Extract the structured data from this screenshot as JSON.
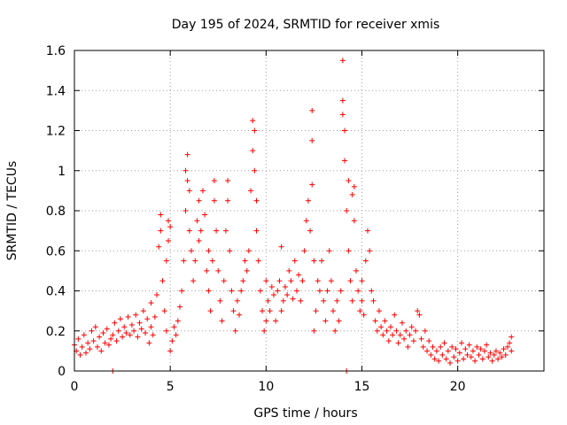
{
  "chart_data": {
    "type": "scatter",
    "title": "Day 195 of 2024, SRMTID for receiver xmis",
    "xlabel": "GPS time / hours",
    "ylabel": "SRMTID / TECUs",
    "xlim": [
      0,
      24.5
    ],
    "ylim": [
      0,
      1.6
    ],
    "xticks": [
      0,
      5,
      10,
      15,
      20
    ],
    "xtick_labels": [
      "0",
      "5",
      "10",
      "15",
      "20"
    ],
    "yticks": [
      0,
      0.2,
      0.4,
      0.6,
      0.8,
      1.0,
      1.2,
      1.4,
      1.6
    ],
    "ytick_labels": [
      "0",
      "0.2",
      "0.4",
      "0.6",
      "0.8",
      "1",
      "1.2",
      "1.4",
      "1.6"
    ],
    "grid": true,
    "marker": "+",
    "color": "#ff0000",
    "series": [
      {
        "name": "SRMTID",
        "points": [
          [
            0.0,
            0.13
          ],
          [
            0.1,
            0.1
          ],
          [
            0.2,
            0.16
          ],
          [
            0.3,
            0.08
          ],
          [
            0.4,
            0.12
          ],
          [
            0.5,
            0.18
          ],
          [
            0.6,
            0.09
          ],
          [
            0.7,
            0.14
          ],
          [
            0.8,
            0.11
          ],
          [
            0.9,
            0.2
          ],
          [
            1.0,
            0.15
          ],
          [
            1.1,
            0.22
          ],
          [
            1.2,
            0.12
          ],
          [
            1.3,
            0.17
          ],
          [
            1.4,
            0.1
          ],
          [
            1.5,
            0.19
          ],
          [
            1.6,
            0.14
          ],
          [
            1.7,
            0.21
          ],
          [
            1.8,
            0.13
          ],
          [
            1.9,
            0.16
          ],
          [
            2.0,
            0.0
          ],
          [
            2.0,
            0.18
          ],
          [
            2.1,
            0.24
          ],
          [
            2.2,
            0.15
          ],
          [
            2.3,
            0.2
          ],
          [
            2.4,
            0.26
          ],
          [
            2.5,
            0.17
          ],
          [
            2.6,
            0.22
          ],
          [
            2.7,
            0.19
          ],
          [
            2.8,
            0.27
          ],
          [
            2.9,
            0.18
          ],
          [
            3.0,
            0.23
          ],
          [
            3.1,
            0.2
          ],
          [
            3.2,
            0.28
          ],
          [
            3.3,
            0.17
          ],
          [
            3.4,
            0.24
          ],
          [
            3.5,
            0.21
          ],
          [
            3.6,
            0.3
          ],
          [
            3.7,
            0.19
          ],
          [
            3.8,
            0.26
          ],
          [
            3.9,
            0.14
          ],
          [
            4.0,
            0.22
          ],
          [
            4.0,
            0.34
          ],
          [
            4.1,
            0.18
          ],
          [
            4.2,
            0.27
          ],
          [
            4.3,
            0.38
          ],
          [
            4.4,
            0.62
          ],
          [
            4.5,
            0.7
          ],
          [
            4.5,
            0.78
          ],
          [
            4.6,
            0.45
          ],
          [
            4.7,
            0.3
          ],
          [
            4.8,
            0.2
          ],
          [
            4.8,
            0.55
          ],
          [
            4.9,
            0.65
          ],
          [
            4.9,
            0.75
          ],
          [
            5.0,
            0.72
          ],
          [
            5.0,
            0.1
          ],
          [
            5.1,
            0.15
          ],
          [
            5.2,
            0.22
          ],
          [
            5.3,
            0.18
          ],
          [
            5.4,
            0.25
          ],
          [
            5.5,
            0.32
          ],
          [
            5.6,
            0.4
          ],
          [
            5.7,
            0.55
          ],
          [
            5.8,
            0.8
          ],
          [
            5.8,
            1.0
          ],
          [
            5.9,
            1.08
          ],
          [
            5.9,
            0.95
          ],
          [
            6.0,
            0.9
          ],
          [
            6.0,
            0.7
          ],
          [
            6.1,
            0.6
          ],
          [
            6.2,
            0.45
          ],
          [
            6.3,
            0.55
          ],
          [
            6.4,
            0.75
          ],
          [
            6.5,
            0.85
          ],
          [
            6.5,
            0.65
          ],
          [
            6.6,
            0.7
          ],
          [
            6.7,
            0.9
          ],
          [
            6.8,
            0.78
          ],
          [
            6.9,
            0.5
          ],
          [
            7.0,
            0.4
          ],
          [
            7.0,
            0.6
          ],
          [
            7.1,
            0.3
          ],
          [
            7.2,
            0.55
          ],
          [
            7.3,
            0.85
          ],
          [
            7.3,
            0.95
          ],
          [
            7.4,
            0.7
          ],
          [
            7.5,
            0.5
          ],
          [
            7.6,
            0.35
          ],
          [
            7.7,
            0.25
          ],
          [
            7.8,
            0.45
          ],
          [
            7.9,
            0.7
          ],
          [
            8.0,
            0.95
          ],
          [
            8.0,
            0.85
          ],
          [
            8.1,
            0.6
          ],
          [
            8.2,
            0.4
          ],
          [
            8.3,
            0.3
          ],
          [
            8.4,
            0.2
          ],
          [
            8.5,
            0.35
          ],
          [
            8.6,
            0.28
          ],
          [
            8.7,
            0.4
          ],
          [
            8.8,
            0.45
          ],
          [
            8.9,
            0.55
          ],
          [
            9.0,
            0.5
          ],
          [
            9.1,
            0.6
          ],
          [
            9.2,
            0.9
          ],
          [
            9.3,
            1.1
          ],
          [
            9.3,
            1.25
          ],
          [
            9.4,
            1.2
          ],
          [
            9.4,
            1.0
          ],
          [
            9.5,
            0.85
          ],
          [
            9.5,
            0.7
          ],
          [
            9.6,
            0.55
          ],
          [
            9.7,
            0.4
          ],
          [
            9.8,
            0.3
          ],
          [
            9.9,
            0.2
          ],
          [
            10.0,
            0.25
          ],
          [
            10.0,
            0.45
          ],
          [
            10.1,
            0.35
          ],
          [
            10.2,
            0.3
          ],
          [
            10.3,
            0.42
          ],
          [
            10.4,
            0.38
          ],
          [
            10.5,
            0.25
          ],
          [
            10.6,
            0.4
          ],
          [
            10.7,
            0.45
          ],
          [
            10.8,
            0.62
          ],
          [
            10.8,
            0.3
          ],
          [
            10.9,
            0.35
          ],
          [
            11.0,
            0.42
          ],
          [
            11.1,
            0.38
          ],
          [
            11.2,
            0.5
          ],
          [
            11.3,
            0.45
          ],
          [
            11.4,
            0.36
          ],
          [
            11.5,
            0.55
          ],
          [
            11.6,
            0.4
          ],
          [
            11.7,
            0.48
          ],
          [
            11.8,
            0.35
          ],
          [
            11.9,
            0.45
          ],
          [
            12.0,
            0.6
          ],
          [
            12.1,
            0.75
          ],
          [
            12.2,
            0.85
          ],
          [
            12.3,
            0.7
          ],
          [
            12.4,
            0.93
          ],
          [
            12.4,
            1.15
          ],
          [
            12.4,
            1.3
          ],
          [
            12.5,
            0.55
          ],
          [
            12.5,
            0.2
          ],
          [
            12.6,
            0.3
          ],
          [
            12.7,
            0.45
          ],
          [
            12.8,
            0.4
          ],
          [
            12.9,
            0.55
          ],
          [
            13.0,
            0.35
          ],
          [
            13.1,
            0.25
          ],
          [
            13.2,
            0.4
          ],
          [
            13.3,
            0.6
          ],
          [
            13.4,
            0.45
          ],
          [
            13.5,
            0.3
          ],
          [
            13.6,
            0.2
          ],
          [
            13.7,
            0.35
          ],
          [
            13.8,
            0.25
          ],
          [
            13.9,
            0.4
          ],
          [
            14.0,
            1.55
          ],
          [
            14.0,
            1.35
          ],
          [
            14.0,
            1.28
          ],
          [
            14.1,
            1.2
          ],
          [
            14.1,
            1.05
          ],
          [
            14.2,
            0.8
          ],
          [
            14.2,
            0.0
          ],
          [
            14.3,
            0.95
          ],
          [
            14.3,
            0.6
          ],
          [
            14.4,
            0.45
          ],
          [
            14.5,
            0.35
          ],
          [
            14.5,
            0.88
          ],
          [
            14.6,
            0.92
          ],
          [
            14.6,
            0.75
          ],
          [
            14.7,
            0.5
          ],
          [
            14.8,
            0.4
          ],
          [
            14.9,
            0.3
          ],
          [
            15.0,
            0.45
          ],
          [
            15.0,
            0.35
          ],
          [
            15.1,
            0.28
          ],
          [
            15.2,
            0.55
          ],
          [
            15.3,
            0.7
          ],
          [
            15.4,
            0.6
          ],
          [
            15.5,
            0.4
          ],
          [
            15.6,
            0.35
          ],
          [
            15.7,
            0.25
          ],
          [
            15.8,
            0.2
          ],
          [
            15.9,
            0.3
          ],
          [
            16.0,
            0.22
          ],
          [
            16.1,
            0.18
          ],
          [
            16.2,
            0.25
          ],
          [
            16.3,
            0.2
          ],
          [
            16.4,
            0.15
          ],
          [
            16.5,
            0.22
          ],
          [
            16.6,
            0.18
          ],
          [
            16.7,
            0.28
          ],
          [
            16.8,
            0.2
          ],
          [
            16.9,
            0.14
          ],
          [
            17.0,
            0.18
          ],
          [
            17.1,
            0.24
          ],
          [
            17.2,
            0.16
          ],
          [
            17.3,
            0.2
          ],
          [
            17.4,
            0.12
          ],
          [
            17.5,
            0.18
          ],
          [
            17.6,
            0.22
          ],
          [
            17.7,
            0.15
          ],
          [
            17.8,
            0.2
          ],
          [
            17.9,
            0.3
          ],
          [
            18.0,
            0.28
          ],
          [
            18.1,
            0.16
          ],
          [
            18.2,
            0.12
          ],
          [
            18.3,
            0.2
          ],
          [
            18.4,
            0.1
          ],
          [
            18.5,
            0.15
          ],
          [
            18.6,
            0.08
          ],
          [
            18.7,
            0.12
          ],
          [
            18.8,
            0.06
          ],
          [
            18.9,
            0.1
          ],
          [
            19.0,
            0.05
          ],
          [
            19.1,
            0.12
          ],
          [
            19.2,
            0.08
          ],
          [
            19.3,
            0.14
          ],
          [
            19.4,
            0.06
          ],
          [
            19.5,
            0.1
          ],
          [
            19.6,
            0.04
          ],
          [
            19.7,
            0.12
          ],
          [
            19.8,
            0.07
          ],
          [
            19.9,
            0.11
          ],
          [
            20.0,
            0.05
          ],
          [
            20.1,
            0.09
          ],
          [
            20.2,
            0.14
          ],
          [
            20.3,
            0.06
          ],
          [
            20.4,
            0.11
          ],
          [
            20.5,
            0.08
          ],
          [
            20.6,
            0.13
          ],
          [
            20.7,
            0.07
          ],
          [
            20.8,
            0.1
          ],
          [
            20.9,
            0.05
          ],
          [
            21.0,
            0.12
          ],
          [
            21.1,
            0.08
          ],
          [
            21.2,
            0.11
          ],
          [
            21.3,
            0.06
          ],
          [
            21.4,
            0.1
          ],
          [
            21.5,
            0.13
          ],
          [
            21.6,
            0.07
          ],
          [
            21.7,
            0.09
          ],
          [
            21.8,
            0.05
          ],
          [
            21.9,
            0.08
          ],
          [
            22.0,
            0.1
          ],
          [
            22.1,
            0.06
          ],
          [
            22.2,
            0.09
          ],
          [
            22.3,
            0.07
          ],
          [
            22.4,
            0.11
          ],
          [
            22.5,
            0.08
          ],
          [
            22.6,
            0.12
          ],
          [
            22.7,
            0.14
          ],
          [
            22.8,
            0.17
          ],
          [
            22.8,
            0.1
          ]
        ]
      }
    ]
  }
}
